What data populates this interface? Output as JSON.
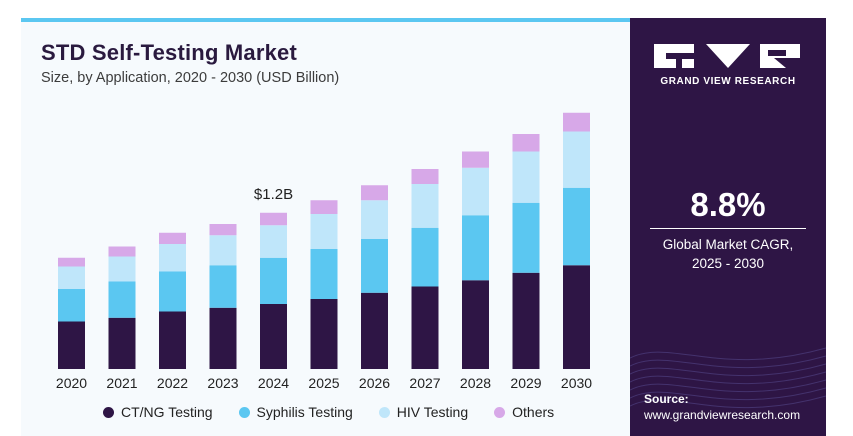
{
  "header": {
    "title": "STD Self-Testing Market",
    "subtitle": "Size, by Application, 2020 - 2030 (USD Billion)"
  },
  "chart_data": {
    "type": "bar",
    "stacked": true,
    "title": "STD Self-Testing Market",
    "subtitle": "Size, by Application, 2020 - 2030 (USD Billion)",
    "categories": [
      "2020",
      "2021",
      "2022",
      "2023",
      "2024",
      "2025",
      "2026",
      "2027",
      "2028",
      "2029",
      "2030"
    ],
    "series": [
      {
        "name": "CT/NG Testing",
        "color": "#2e1545",
        "values": [
          0.38,
          0.41,
          0.46,
          0.49,
          0.52,
          0.56,
          0.61,
          0.66,
          0.71,
          0.77,
          0.83
        ]
      },
      {
        "name": "Syphilis Testing",
        "color": "#5bc7f1",
        "values": [
          0.26,
          0.29,
          0.32,
          0.34,
          0.37,
          0.4,
          0.43,
          0.47,
          0.52,
          0.56,
          0.62
        ]
      },
      {
        "name": "HIV Testing",
        "color": "#bfe6fa",
        "values": [
          0.18,
          0.2,
          0.22,
          0.24,
          0.26,
          0.28,
          0.31,
          0.35,
          0.38,
          0.41,
          0.45
        ]
      },
      {
        "name": "Others",
        "color": "#d7a8e8",
        "values": [
          0.07,
          0.08,
          0.09,
          0.09,
          0.1,
          0.11,
          0.12,
          0.12,
          0.13,
          0.14,
          0.15
        ]
      }
    ],
    "annotations": [
      {
        "category": "2024",
        "text": "$1.2B"
      }
    ],
    "legend_position": "bottom",
    "grid": false
  },
  "legend": {
    "items": [
      {
        "label": "CT/NG Testing",
        "color": "#2e1545"
      },
      {
        "label": "Syphilis Testing",
        "color": "#5bc7f1"
      },
      {
        "label": "HIV Testing",
        "color": "#bfe6fa"
      },
      {
        "label": "Others",
        "color": "#d7a8e8"
      }
    ]
  },
  "sidebar": {
    "logo_text": "GRAND VIEW RESEARCH",
    "cagr_value": "8.8%",
    "cagr_label": "Global Market CAGR,",
    "cagr_period": "2025 - 2030",
    "source_label": "Source:",
    "source_url": "www.grandviewresearch.com"
  }
}
